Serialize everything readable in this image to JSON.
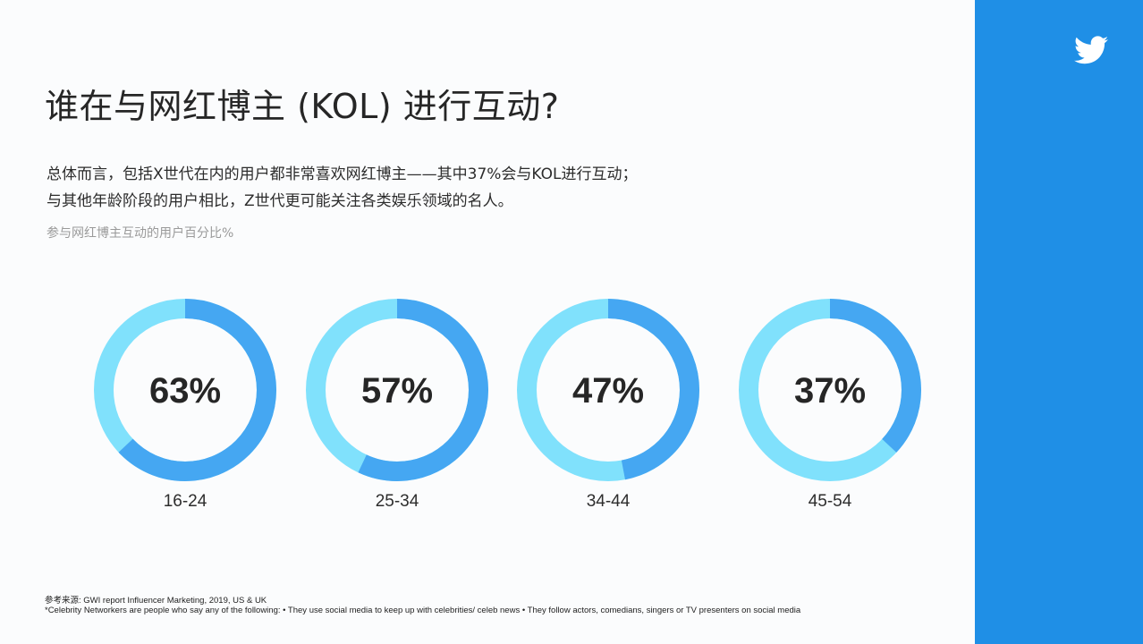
{
  "title": "谁在与网红博主 (KOL) 进行互动?",
  "description": {
    "line1": "总体而言，包括X世代在内的用户都非常喜欢网红博主——其中37%会与KOL进行互动；",
    "line2": "与其他年龄阶段的用户相比，Z世代更可能关注各类娱乐领域的名人。"
  },
  "subtitle": "参与网红博主互动的用户百分比%",
  "footer": {
    "source": "参考来源: GWI report Influencer Marketing, 2019, US & UK",
    "note": "*Celebrity Networkers are people who say any of the following: • They use social media to keep up with celebrities/ celeb news • They follow actors, comedians, singers or TV presenters on social media"
  },
  "brand_icon": "twitter-bird-icon",
  "colors": {
    "accent": "#45a7f2",
    "remainder": "#80e1fc",
    "side_panel": "#1f8fe6"
  },
  "chart_data": {
    "type": "pie",
    "subtype": "donut",
    "title": "参与网红博主互动的用户百分比%",
    "categories": [
      "16-24",
      "25-34",
      "34-44",
      "45-54"
    ],
    "values": [
      63,
      57,
      47,
      37
    ],
    "value_labels": [
      "63%",
      "57%",
      "47%",
      "37%"
    ],
    "unit": "%",
    "max": 100
  }
}
